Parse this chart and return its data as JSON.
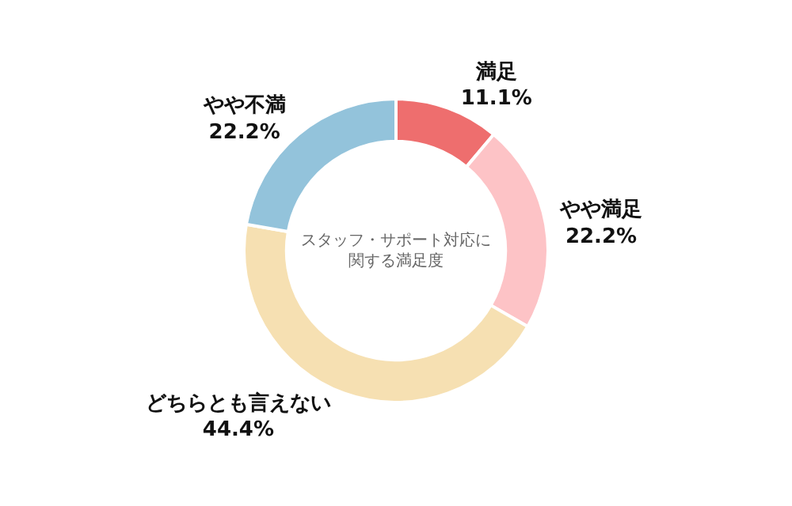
{
  "chart_data": {
    "type": "donut",
    "title": "スタッフ・サポート対応に関する満足度",
    "categories": [
      "満足",
      "やや満足",
      "どちらとも言えない",
      "やや不満"
    ],
    "values": [
      11.1,
      22.2,
      44.4,
      22.2
    ],
    "value_labels": [
      "11.1%",
      "22.2%",
      "44.4%",
      "22.2%"
    ],
    "colors": [
      "#ee6e6e",
      "#fdc3c6",
      "#f6e0b2",
      "#93c3db"
    ],
    "legend": false
  }
}
